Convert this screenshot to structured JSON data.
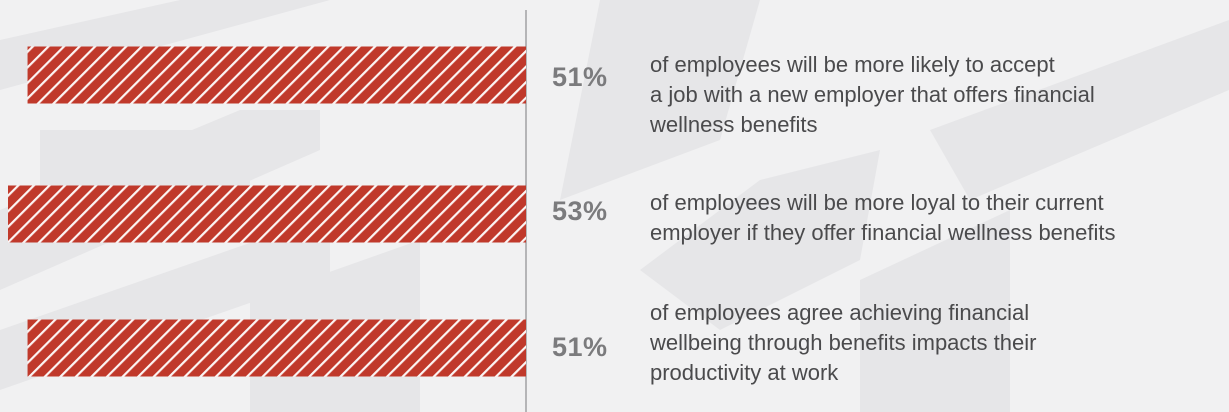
{
  "chart_data": {
    "type": "bar",
    "orientation": "horizontal",
    "bar_color": "#c0392b",
    "bar_pattern": "diagonal-white-stripes",
    "xlim": [
      0,
      53
    ],
    "values": [
      51,
      53,
      51
    ]
  },
  "stats": [
    {
      "percent": "51%",
      "lines": [
        "of employees will be more likely to accept",
        "a job with a new employer that offers financial",
        "wellness benefits"
      ]
    },
    {
      "percent": "53%",
      "lines": [
        "of employees will be more loyal to their current",
        "employer if they offer financial wellness benefits"
      ]
    },
    {
      "percent": "51%",
      "lines": [
        "of employees agree achieving financial",
        "wellbeing through benefits impacts their",
        "productivity at work"
      ]
    }
  ],
  "colors": {
    "background": "#f1f1f2",
    "watermark": "#e6e6e8",
    "axis": "#b5b5b7",
    "percent_text": "#7b7b7d",
    "body_text": "#4a4a4c"
  }
}
